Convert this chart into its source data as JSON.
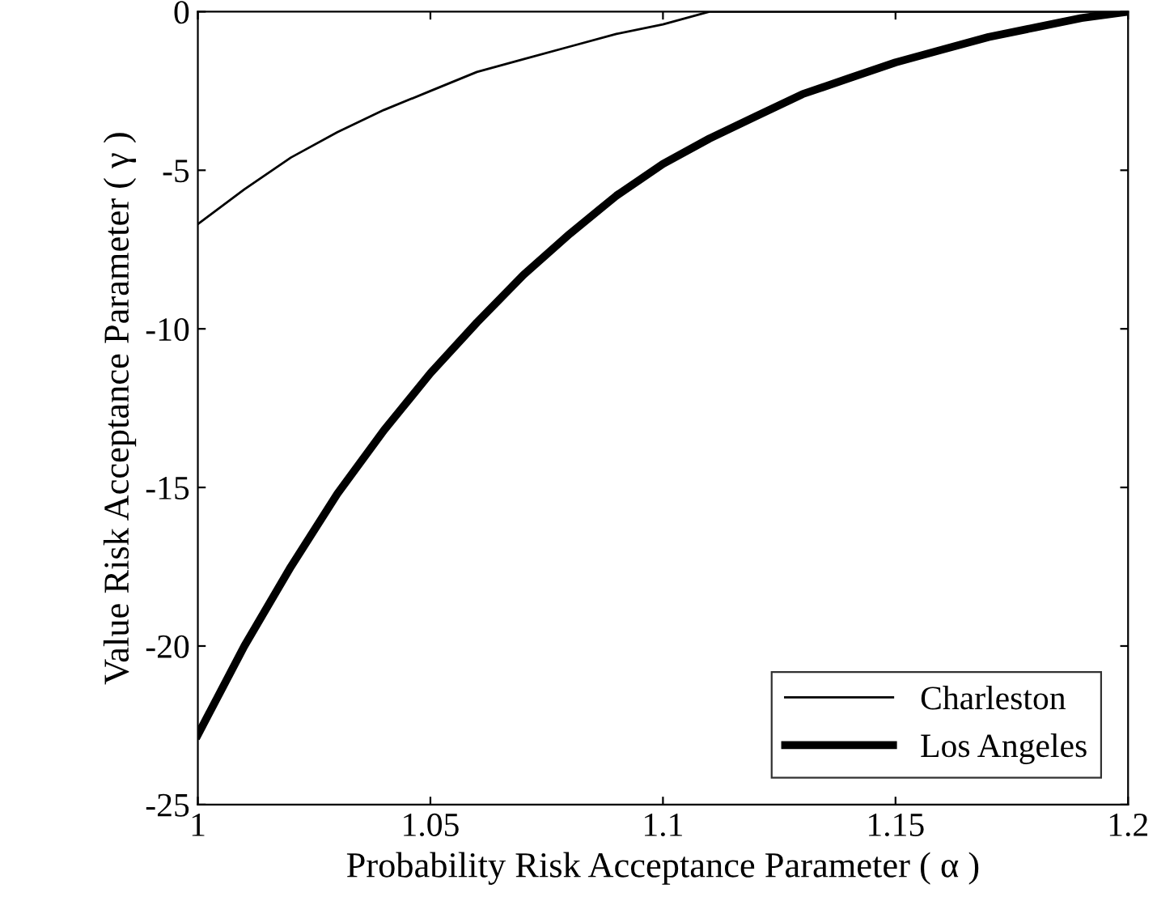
{
  "chart_data": {
    "type": "line",
    "xlabel": "Probability Risk Acceptance Parameter ( α )",
    "ylabel": "Value Risk Acceptance Parameter ( γ )",
    "x": [
      1.0,
      1.01,
      1.02,
      1.03,
      1.04,
      1.05,
      1.06,
      1.07,
      1.08,
      1.09,
      1.1,
      1.11,
      1.12,
      1.13,
      1.14,
      1.15,
      1.16,
      1.17,
      1.18,
      1.19,
      1.2
    ],
    "series": [
      {
        "name": "Charleston",
        "color": "#000000",
        "values": [
          -6.7,
          -5.6,
          -4.6,
          -3.8,
          -3.1,
          -2.5,
          -1.9,
          -1.5,
          -1.1,
          -0.7,
          -0.4,
          0,
          0,
          0,
          0,
          0,
          0,
          0,
          0,
          0,
          0
        ]
      },
      {
        "name": "Los Angeles",
        "color": "#000000",
        "values": [
          -22.8,
          -20.0,
          -17.5,
          -15.2,
          -13.2,
          -11.4,
          -9.8,
          -8.3,
          -7.0,
          -5.8,
          -4.8,
          -4.0,
          -3.3,
          -2.6,
          -2.1,
          -1.6,
          -1.2,
          -0.8,
          -0.5,
          -0.2,
          0
        ]
      }
    ],
    "xlim": [
      1,
      1.2
    ],
    "xticks": [
      1,
      1.05,
      1.1,
      1.15,
      1.2
    ],
    "ylim": [
      -25,
      0
    ],
    "yticks": [
      -25,
      -20,
      -15,
      -10,
      -5,
      0
    ],
    "grid": false,
    "legend": "bottom right",
    "marker": "none",
    "line_style": "solid"
  }
}
